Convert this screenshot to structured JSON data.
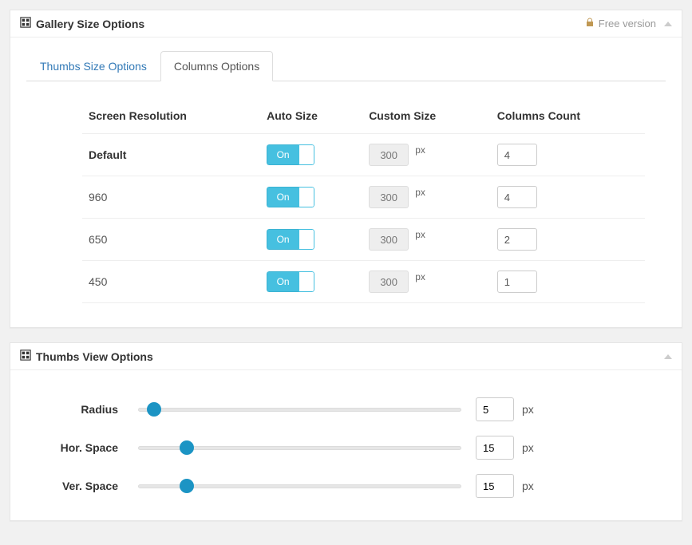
{
  "panels": {
    "gallerySize": {
      "title": "Gallery Size Options",
      "freeVersionLabel": "Free version"
    },
    "thumbsView": {
      "title": "Thumbs View Options"
    }
  },
  "tabs": {
    "thumbs": "Thumbs Size Options",
    "columns": "Columns Options"
  },
  "columnsTable": {
    "headers": {
      "resolution": "Screen Resolution",
      "autoSize": "Auto Size",
      "customSize": "Custom Size",
      "columnsCount": "Columns Count"
    },
    "toggleOnLabel": "On",
    "customUnit": "px",
    "rows": [
      {
        "resolution": "Default",
        "autoSize": true,
        "customSize": "300",
        "columns": "4"
      },
      {
        "resolution": "960",
        "autoSize": true,
        "customSize": "300",
        "columns": "4"
      },
      {
        "resolution": "650",
        "autoSize": true,
        "customSize": "300",
        "columns": "2"
      },
      {
        "resolution": "450",
        "autoSize": true,
        "customSize": "300",
        "columns": "1"
      }
    ]
  },
  "thumbsView": {
    "unit": "px",
    "sliderMax": 100,
    "rows": [
      {
        "label": "Radius",
        "value": "5"
      },
      {
        "label": "Hor. Space",
        "value": "15"
      },
      {
        "label": "Ver. Space",
        "value": "15"
      }
    ]
  },
  "colors": {
    "toggleOn": "#46c0e0",
    "sliderHandle": "#1c94c4",
    "linkColor": "#337ab7",
    "lockColor": "#c09853"
  }
}
